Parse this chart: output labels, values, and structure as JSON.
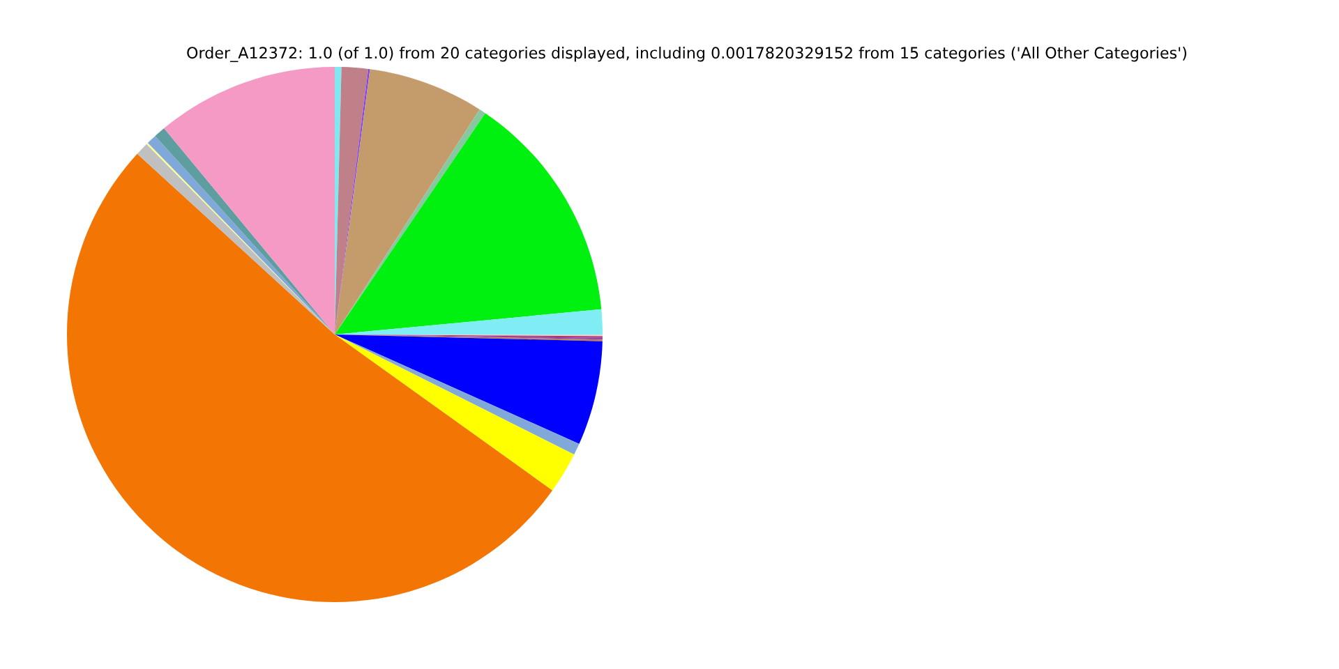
{
  "chart_data": {
    "type": "pie",
    "title": "Order_A12372: 1.0 (of 1.0) from 20 categories displayed, including 0.0017820329152 from 15 categories ('All Other Categories')",
    "categories": [
      null,
      null,
      null,
      null,
      null,
      null,
      null,
      null,
      null,
      null,
      null,
      null,
      null,
      null,
      null,
      null,
      null,
      null,
      null,
      null
    ],
    "values": [
      0.4,
      1.6,
      0.1,
      7.0,
      0.4,
      14.0,
      1.5,
      0.1,
      0.1,
      0.1,
      0.1,
      6.3,
      0.7,
      2.5,
      51.9,
      0.8,
      0.1,
      0.6,
      0.7,
      11.0
    ],
    "colors": [
      "#7fe8f0",
      "#c0808a",
      "#8040f0",
      "#c49c6c",
      "#88c8a0",
      "#00f010",
      "#80ecf4",
      "#d8d8d8",
      "#b03060",
      "#9040c0",
      "#c08040",
      "#0000ff",
      "#80a8d8",
      "#ffff00",
      "#f37504",
      "#c0c0c0",
      "#ffff90",
      "#80a8d8",
      "#5f9ea0",
      "#f49ac4"
    ]
  }
}
